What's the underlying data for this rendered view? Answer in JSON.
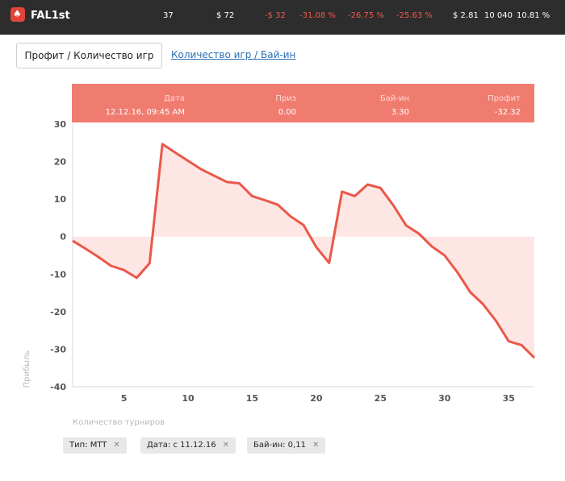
{
  "header": {
    "logo_icon": "pokerstars-spade-icon",
    "player": "FAL1st",
    "stats": [
      {
        "label": "37",
        "negative": false
      },
      {
        "label": "$ 72",
        "negative": false
      },
      {
        "label": "-$ 32",
        "negative": true
      },
      {
        "label": "-31.08 %",
        "negative": true
      },
      {
        "label": "-26.75 %",
        "negative": true
      },
      {
        "label": "-25.63 %",
        "negative": true
      },
      {
        "label": "$ 2.81",
        "negative": false
      },
      {
        "label": "10 040",
        "negative": false
      },
      {
        "label": "10.81 %",
        "negative": false
      }
    ]
  },
  "tabs": {
    "active": "Профит / Количество игр",
    "link": "Количество игр / Бай-ин"
  },
  "tooltip": {
    "date_label": "Дата",
    "date_value": "12.12.16, 09:45 AM",
    "prize_label": "Приз",
    "prize_value": "0.00",
    "buyin_label": "Бай-ин",
    "buyin_value": "3.30",
    "profit_label": "Профит",
    "profit_value": "-32.32"
  },
  "chart_data": {
    "type": "area",
    "ylabel": "Прибыль",
    "xlabel": "Количество турниров",
    "xlim": [
      1,
      37
    ],
    "ylim": [
      -40,
      30
    ],
    "x_ticks": [
      5,
      10,
      15,
      20,
      25,
      30,
      35
    ],
    "y_ticks": [
      30,
      20,
      10,
      0,
      -10,
      -20,
      -30,
      -40
    ],
    "grid": false,
    "line_color": "#ea5849",
    "fill_color": "#fde6e4",
    "x": [
      1,
      2,
      3,
      4,
      5,
      6,
      7,
      8,
      9,
      10,
      11,
      12,
      13,
      14,
      15,
      16,
      17,
      18,
      19,
      20,
      21,
      22,
      23,
      24,
      25,
      26,
      27,
      28,
      29,
      30,
      31,
      32,
      33,
      34,
      35,
      36,
      37
    ],
    "values": [
      -1.1,
      -3.2,
      -5.4,
      -7.8,
      -8.9,
      -11.0,
      -7.1,
      24.7,
      22.4,
      20.2,
      18.0,
      16.3,
      14.6,
      14.2,
      10.8,
      9.7,
      8.5,
      5.4,
      3.1,
      -2.8,
      -7.0,
      12.0,
      10.8,
      13.9,
      13.0,
      8.4,
      3.0,
      0.8,
      -2.6,
      -5.0,
      -9.5,
      -14.8,
      -18.0,
      -22.4,
      -27.9,
      -28.9,
      -32.3
    ]
  },
  "filters": [
    {
      "label": "Тип: MTT",
      "close_icon": "close-icon"
    },
    {
      "label": "Дата: с 11.12.16",
      "close_icon": "close-icon"
    },
    {
      "label": "Бай-ин: 0,11",
      "close_icon": "close-icon"
    }
  ]
}
